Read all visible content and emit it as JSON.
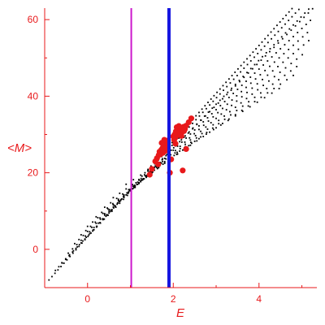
{
  "chart_data": {
    "type": "scatter",
    "title": "",
    "xlabel": "E",
    "ylabel": "<M>",
    "xlim": [
      -1,
      5.35
    ],
    "ylim": [
      -10,
      63
    ],
    "xticks": [
      0,
      2,
      4
    ],
    "xtick_labels": [
      "0",
      "2",
      "4"
    ],
    "yticks": [
      0,
      20,
      40,
      60
    ],
    "ytick_labels": [
      "0",
      "20",
      "40",
      "60"
    ],
    "grid": false,
    "colors": {
      "axes": "#e8191b",
      "background_points": "#000000",
      "highlight_points": "#e8191b",
      "vline_magenta": "#cc18cc",
      "vline_blue": "#1616e0"
    },
    "vertical_lines": [
      {
        "x": 1.02,
        "color": "#cc18cc"
      },
      {
        "x": 1.9,
        "color": "#1616e0"
      }
    ],
    "background_bands": [
      {
        "x_start": -0.9,
        "x_end": 5.35,
        "y_start": -8,
        "slope": 12.5,
        "step": 0.07
      },
      {
        "x_start": -0.75,
        "x_end": 5.35,
        "y_start": -5.5,
        "slope": 12.0,
        "step": 0.08
      },
      {
        "x_start": -0.6,
        "x_end": 5.3,
        "y_start": -3.5,
        "slope": 11.5,
        "step": 0.09
      },
      {
        "x_start": -0.45,
        "x_end": 5.3,
        "y_start": -1.0,
        "slope": 11.2,
        "step": 0.1
      },
      {
        "x_start": -0.3,
        "x_end": 5.25,
        "y_start": 1.5,
        "slope": 10.6,
        "step": 0.1
      },
      {
        "x_start": -0.15,
        "x_end": 5.2,
        "y_start": 3.8,
        "slope": 10.0,
        "step": 0.11
      },
      {
        "x_start": 0.0,
        "x_end": 5.2,
        "y_start": 6.0,
        "slope": 9.4,
        "step": 0.12
      },
      {
        "x_start": 0.2,
        "x_end": 5.1,
        "y_start": 8.5,
        "slope": 8.8,
        "step": 0.13
      },
      {
        "x_start": 0.4,
        "x_end": 5.0,
        "y_start": 11.0,
        "slope": 8.2,
        "step": 0.14
      },
      {
        "x_start": 0.6,
        "x_end": 4.9,
        "y_start": 13.5,
        "slope": 7.6,
        "step": 0.15
      },
      {
        "x_start": 0.9,
        "x_end": 4.6,
        "y_start": 17.0,
        "slope": 7.0,
        "step": 0.17
      }
    ],
    "highlight_clusters": [
      {
        "x": [
          1.68,
          1.72,
          1.75,
          1.78,
          1.8,
          1.82,
          1.85,
          1.87,
          1.7,
          1.76,
          1.81,
          1.86,
          1.73,
          1.79,
          1.84,
          1.66,
          1.62
        ],
        "y": [
          25.5,
          26.0,
          26.5,
          27.0,
          27.5,
          28.0,
          27.2,
          26.8,
          24.8,
          25.2,
          26.2,
          28.4,
          27.8,
          28.6,
          25.8,
          24.6,
          23.8
        ]
      },
      {
        "x": [
          2.0,
          2.03,
          2.06,
          2.09,
          2.12,
          2.15,
          2.18,
          2.21,
          2.24,
          2.27,
          2.3,
          2.05,
          2.1,
          2.16,
          2.2,
          2.25,
          2.08,
          2.13,
          2.19,
          2.02,
          2.36,
          2.42
        ],
        "y": [
          29.5,
          30.0,
          30.8,
          31.2,
          31.0,
          30.5,
          31.5,
          31.8,
          32.0,
          31.4,
          32.3,
          29.2,
          29.8,
          30.2,
          30.6,
          30.9,
          31.9,
          32.2,
          29.6,
          28.6,
          33.2,
          34.2
        ]
      },
      {
        "x": [
          1.5,
          1.58,
          1.65,
          1.95,
          2.05,
          2.22,
          1.45,
          2.3,
          1.92
        ],
        "y": [
          21.0,
          23.0,
          22.2,
          23.5,
          27.6,
          20.6,
          19.5,
          26.2,
          20.0
        ]
      }
    ]
  }
}
